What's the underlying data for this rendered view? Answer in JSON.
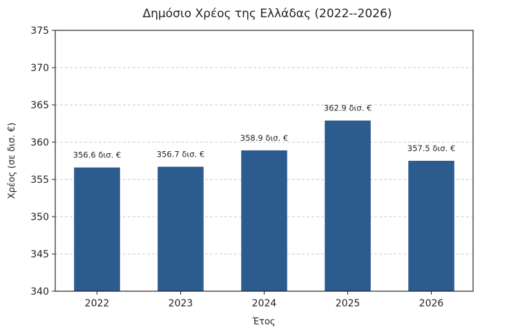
{
  "chart_data": {
    "type": "bar",
    "title": "Δημόσιο Χρέος της Ελλάδας (2022--2026)",
    "xlabel": "Έτος",
    "ylabel": "Χρέος (σε δισ. €)",
    "categories": [
      "2022",
      "2023",
      "2024",
      "2025",
      "2026"
    ],
    "values": [
      356.6,
      356.7,
      358.9,
      362.9,
      357.5
    ],
    "data_labels": [
      "356.6 δισ. €",
      "356.7 δισ. €",
      "358.9 δισ. €",
      "362.9 δισ. €",
      "357.5 δισ. €"
    ],
    "ylim": [
      340,
      375
    ],
    "yticks": [
      340,
      345,
      350,
      355,
      360,
      365,
      370,
      375
    ],
    "grid": "y-dashed",
    "legend": "none",
    "bar_color": "#2c5b8e"
  }
}
